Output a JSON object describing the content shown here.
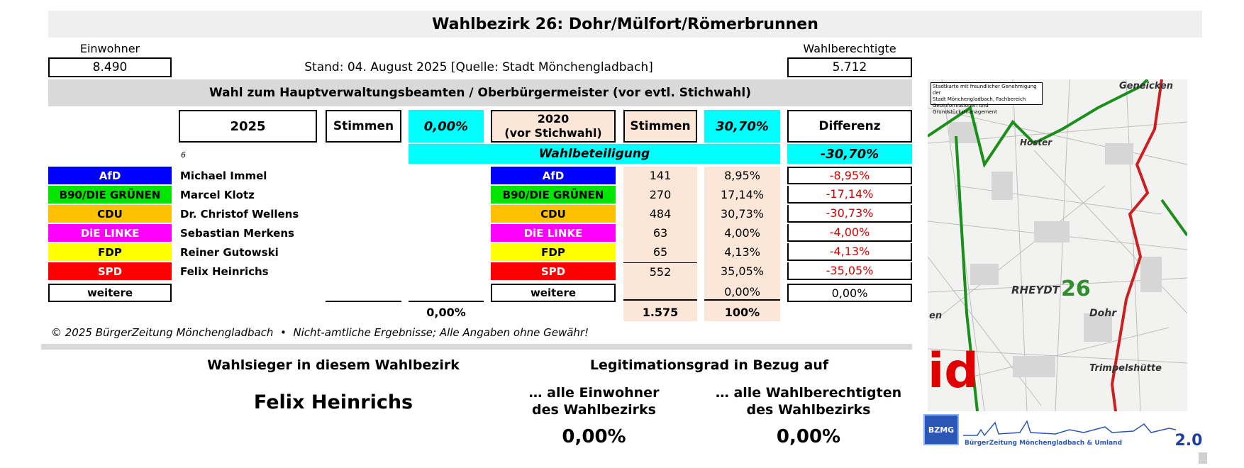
{
  "title": "Wahlbezirk 26: Dohr/Mülfort/Römerbrunnen",
  "einwohner_label": "Einwohner",
  "einwohner_value": "8.490",
  "wahlberechtigte_label": "Wahlberechtigte",
  "wahlberechtigte_value": "5.712",
  "stand": "Stand: 04. August 2025 [Quelle: Stadt Mönchengladbach]",
  "section_title": "Wahl zum Hauptverwaltungsbeamten / Oberbürgermeister (vor evtl. Stichwahl)",
  "headers": {
    "year_2025": "2025",
    "stimmen_2025": "Stimmen",
    "pct_2025": "0,00%",
    "year_2020_line1": "2020",
    "year_2020_line2": "(vor Stichwahl)",
    "stimmen_2020": "Stimmen",
    "pct_2020": "30,70%",
    "differenz": "Differenz"
  },
  "small_note": "6",
  "wahlbeteiligung_label": "Wahlbeteiligung",
  "wahlbeteiligung_diff": "-30,70%",
  "rows": [
    {
      "party": "AfD",
      "color": "#0000ff",
      "text_color": "#ffffff",
      "candidate": "Michael Immel",
      "stimmen_2020": "141",
      "pct_2020": "8,95%",
      "diff": "-8,95%"
    },
    {
      "party": "B90/DIE GRÜNEN",
      "color": "#00e600",
      "text_color": "#000000",
      "candidate": "Marcel Klotz",
      "stimmen_2020": "270",
      "pct_2020": "17,14%",
      "diff": "-17,14%"
    },
    {
      "party": "CDU",
      "color": "#ffc000",
      "text_color": "#000000",
      "candidate": "Dr. Christof Wellens",
      "stimmen_2020": "484",
      "pct_2020": "30,73%",
      "diff": "-30,73%"
    },
    {
      "party": "DiE LINKE",
      "color": "#ff00ff",
      "text_color": "#ffffff",
      "candidate": "Sebastian Merkens",
      "stimmen_2020": "63",
      "pct_2020": "4,00%",
      "diff": "-4,00%"
    },
    {
      "party": "FDP",
      "color": "#ffff00",
      "text_color": "#000000",
      "candidate": "Reiner Gutowski",
      "stimmen_2020": "65",
      "pct_2020": "4,13%",
      "diff": "-4,13%"
    },
    {
      "party": "SPD",
      "color": "#ff0000",
      "text_color": "#ffffff",
      "candidate": "Felix Heinrichs",
      "stimmen_2020": "552",
      "pct_2020": "35,05%",
      "diff": "-35,05%"
    }
  ],
  "weitere": {
    "party": "weitere",
    "party_2020": "weitere",
    "stimmen_2020": "",
    "pct_2020": "0,00%",
    "diff": "0,00%"
  },
  "totals": {
    "pct_2025": "0,00%",
    "stimmen_2020": "1.575",
    "pct_2020": "100%"
  },
  "footer_note": "© 2025 BürgerZeitung Mönchengladbach  •  Nicht-amtliche Ergebnisse; Alle Angaben ohne Gewähr!",
  "sieger_label": "Wahlsieger in diesem Wahlbezirk",
  "sieger_name": "Felix Heinrichs",
  "legit_label": "Legitimationsgrad in Bezug auf",
  "legit_einwohner_line1": "… alle Einwohner",
  "legit_einwohner_line2": "des Wahlbezirks",
  "legit_einwohner_value": "0,00%",
  "legit_berechtigte_line1": "… alle Wahlberechtigten",
  "legit_berechtigte_line2": "des Wahlbezirks",
  "legit_berechtigte_value": "0,00%",
  "map": {
    "notice_line1": "Stadtkarte mit freundlicher Genehmigung der",
    "notice_line2": "Stadt Mönchengladbach, Fachbereich",
    "notice_line3": "Geoinformationen und Grundstücksmanagement",
    "label_geneicken": "Geneicken",
    "label_hoster": "Hoster",
    "label_rheydt": "RHEYDT",
    "label_district": "26",
    "label_dohr": "Dohr",
    "label_trimpels": "Trimpelshütte",
    "label_id": "id",
    "label_en": "en"
  },
  "logo": {
    "badge": "BZMG",
    "text": "BürgerZeitung Mönchengladbach & Umland",
    "version": "2.0"
  }
}
